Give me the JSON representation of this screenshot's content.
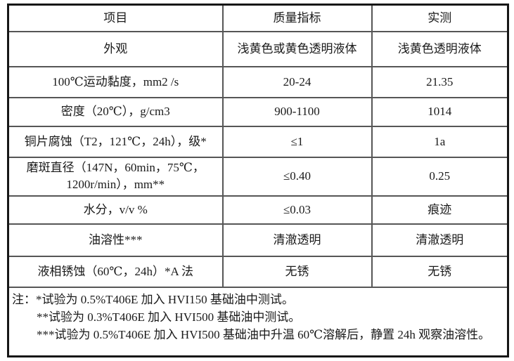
{
  "table": {
    "headers": [
      "项目",
      "质量指标",
      "实测"
    ],
    "rows": [
      {
        "item": "外观",
        "spec": "浅黄色或黄色透明液体",
        "actual": "浅黄色透明液体"
      },
      {
        "item": "100℃运动黏度，mm2 /s",
        "spec": "20-24",
        "actual": "21.35"
      },
      {
        "item": "密度（20℃），g/cm3",
        "spec": "900-1100",
        "actual": "1014"
      },
      {
        "item": "铜片腐蚀（T2，121℃，24h），级*",
        "spec": "≤1",
        "actual": "1a"
      },
      {
        "item": "磨斑直径（147N，60min，75℃，1200r/min），mm**",
        "spec": "≤0.40",
        "actual": "0.25"
      },
      {
        "item": "水分，v/v %",
        "spec": "≤0.03",
        "actual": "痕迹"
      },
      {
        "item": "油溶性***",
        "spec": "清澈透明",
        "actual": "清澈透明"
      },
      {
        "item": "液相锈蚀（60℃，24h）*A 法",
        "spec": "无锈",
        "actual": "无锈"
      }
    ],
    "notes": [
      "注：*试验为 0.5%T406E 加入 HVI150 基础油中测试。",
      "**试验为 0.3%T406E 加入 HVI500 基础油中测试。",
      "***试验为 0.5%T406E 加入 HVI500 基础油中升温 60℃溶解后，静置 24h 观察油溶性。"
    ]
  },
  "colors": {
    "background": "#ffffff",
    "text": "#1a1a1a",
    "border_outer": "#161616",
    "border_inner": "#565656"
  }
}
